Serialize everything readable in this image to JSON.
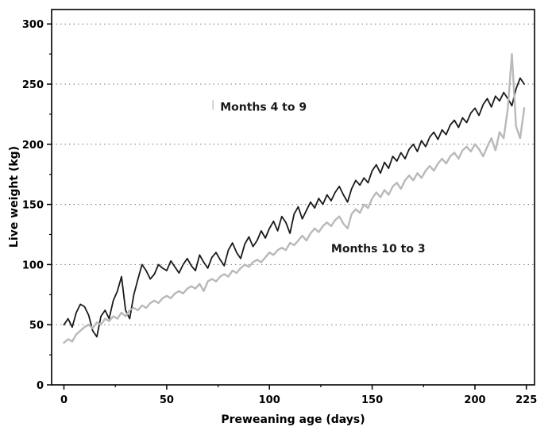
{
  "figure": {
    "background": "#ffffff",
    "frame_color": "#000000",
    "gridline_color": "#777777"
  },
  "chart_data": {
    "type": "line",
    "title": "",
    "xlabel": "Preweaning age (days)",
    "ylabel": "Live weight (kg)",
    "x_domain": [
      -6,
      229
    ],
    "y_domain": [
      0,
      312
    ],
    "x_ticks": {
      "major": [
        0,
        50,
        100,
        150,
        200,
        225
      ],
      "minor": [
        25,
        75,
        125,
        175
      ]
    },
    "y_ticks": {
      "major": [
        0,
        50,
        100,
        150,
        200,
        250,
        300
      ],
      "minor": [
        25,
        75,
        125,
        175,
        225,
        275
      ]
    },
    "y_gridlines": [
      50,
      100,
      150,
      200,
      250,
      300
    ],
    "grid_style": "dotted",
    "legend_position": "none",
    "series": [
      {
        "name": "Months 4 to 9",
        "color": "#1a1a1a",
        "width": 1.8,
        "x_start": 0,
        "x_step": 2,
        "values": [
          50,
          55,
          48,
          60,
          67,
          65,
          58,
          45,
          40,
          57,
          62,
          55,
          70,
          78,
          90,
          62,
          55,
          75,
          88,
          100,
          95,
          88,
          92,
          100,
          97,
          95,
          103,
          98,
          93,
          100,
          105,
          99,
          95,
          108,
          102,
          97,
          106,
          110,
          104,
          99,
          112,
          118,
          110,
          105,
          117,
          123,
          115,
          120,
          128,
          122,
          130,
          136,
          128,
          140,
          135,
          126,
          142,
          148,
          138,
          145,
          152,
          147,
          155,
          150,
          158,
          153,
          160,
          165,
          158,
          152,
          163,
          170,
          166,
          172,
          168,
          178,
          183,
          176,
          185,
          180,
          190,
          186,
          193,
          188,
          196,
          200,
          194,
          203,
          198,
          206,
          210,
          204,
          212,
          208,
          216,
          220,
          214,
          222,
          218,
          226,
          230,
          224,
          233,
          238,
          231,
          240,
          236,
          243,
          238,
          232,
          246,
          255,
          250
        ]
      },
      {
        "name": "Months 10 to 3",
        "color": "#b9b9b9",
        "width": 2.4,
        "x_start": 0,
        "x_step": 2,
        "values": [
          35,
          38,
          36,
          42,
          45,
          48,
          50,
          47,
          52,
          50,
          55,
          53,
          57,
          55,
          60,
          57,
          62,
          64,
          62,
          66,
          64,
          68,
          70,
          68,
          72,
          74,
          72,
          76,
          78,
          76,
          80,
          82,
          80,
          84,
          78,
          86,
          88,
          86,
          90,
          92,
          90,
          95,
          93,
          97,
          100,
          98,
          102,
          104,
          102,
          106,
          110,
          108,
          112,
          114,
          112,
          118,
          116,
          120,
          124,
          120,
          126,
          130,
          127,
          132,
          135,
          132,
          137,
          140,
          134,
          130,
          142,
          146,
          143,
          150,
          147,
          155,
          160,
          156,
          162,
          158,
          165,
          168,
          163,
          170,
          174,
          170,
          176,
          172,
          178,
          182,
          178,
          184,
          188,
          184,
          190,
          193,
          188,
          195,
          198,
          194,
          200,
          196,
          190,
          198,
          205,
          195,
          210,
          205,
          230,
          275,
          215,
          205,
          230
        ]
      }
    ],
    "annotations": [
      {
        "text": "Months 4 to 9",
        "x": 76,
        "y": 228,
        "color": "#1a1a1a",
        "tick_mark": true
      },
      {
        "text": "Months 10 to 3",
        "x": 130,
        "y": 110,
        "color": "#1a1a1a",
        "tick_mark": false
      }
    ]
  }
}
